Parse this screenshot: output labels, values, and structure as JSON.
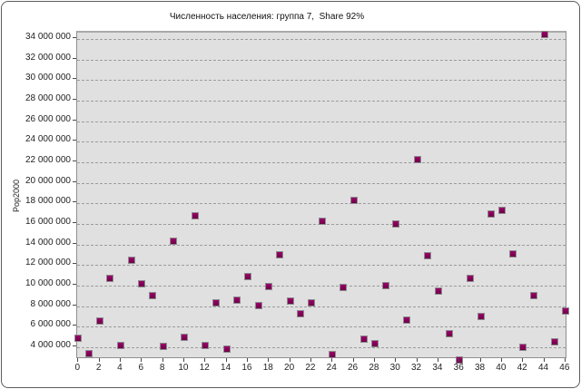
{
  "window": {
    "background": "#ffffff",
    "border_color": "#5e5e5e"
  },
  "chart_data": {
    "type": "scatter",
    "title": "Численность населения: группа 7,  Share 92%",
    "xlabel": "",
    "ylabel": "Pop2000",
    "legend_position": "none",
    "grid": "horizontal-dashed",
    "plot_background": "#e0e0e0",
    "gridline_color": "#9c9c9c",
    "marker": "filled-square",
    "marker_color": "#8a005c",
    "marker_border_color": "#8c8c8c",
    "x_range": [
      -0.11,
      46.2
    ],
    "y_range": [
      2780000,
      34620000
    ],
    "x": [
      0,
      1,
      2,
      3,
      4,
      5,
      6,
      7,
      8,
      9,
      10,
      11,
      12,
      13,
      14,
      15,
      16,
      17,
      18,
      19,
      20,
      21,
      22,
      23,
      24,
      25,
      26,
      27,
      28,
      29,
      30,
      31,
      32,
      33,
      34,
      35,
      36,
      37,
      38,
      39,
      40,
      41,
      42,
      43,
      44,
      45,
      46
    ],
    "values": [
      4900000,
      3400000,
      6600000,
      10700000,
      4200000,
      12500000,
      10200000,
      9000000,
      4100000,
      14300000,
      5000000,
      16800000,
      4200000,
      8300000,
      3800000,
      8600000,
      10900000,
      8100000,
      9900000,
      13000000,
      8500000,
      7300000,
      8300000,
      16300000,
      3300000,
      9800000,
      18300000,
      4800000,
      4400000,
      10000000,
      16000000,
      6700000,
      22300000,
      12900000,
      9500000,
      5300000,
      2800000,
      10700000,
      7000000,
      17000000,
      17300000,
      13100000,
      4000000,
      9000000,
      34400000,
      4500000,
      7500000
    ],
    "y_ticks": [
      4000000,
      6000000,
      8000000,
      10000000,
      12000000,
      14000000,
      16000000,
      18000000,
      20000000,
      22000000,
      24000000,
      26000000,
      28000000,
      30000000,
      32000000,
      34000000
    ],
    "y_tick_labels": [
      "4 000 000",
      "6 000 000",
      "8 000 000",
      "10 000 000",
      "12 000 000",
      "14 000 000",
      "16 000 000",
      "18 000 000",
      "20 000 000",
      "22 000 000",
      "24 000 000",
      "26 000 000",
      "28 000 000",
      "30 000 000",
      "32 000 000",
      "34 000 000"
    ],
    "x_ticks": [
      0,
      2,
      4,
      6,
      8,
      10,
      12,
      14,
      16,
      18,
      20,
      22,
      24,
      26,
      28,
      30,
      32,
      34,
      36,
      38,
      40,
      42,
      44,
      46
    ],
    "x_tick_labels": [
      "0",
      "2",
      "4",
      "6",
      "8",
      "10",
      "12",
      "14",
      "16",
      "18",
      "20",
      "22",
      "24",
      "26",
      "28",
      "30",
      "32",
      "34",
      "36",
      "38",
      "40",
      "42",
      "44",
      "46"
    ]
  }
}
